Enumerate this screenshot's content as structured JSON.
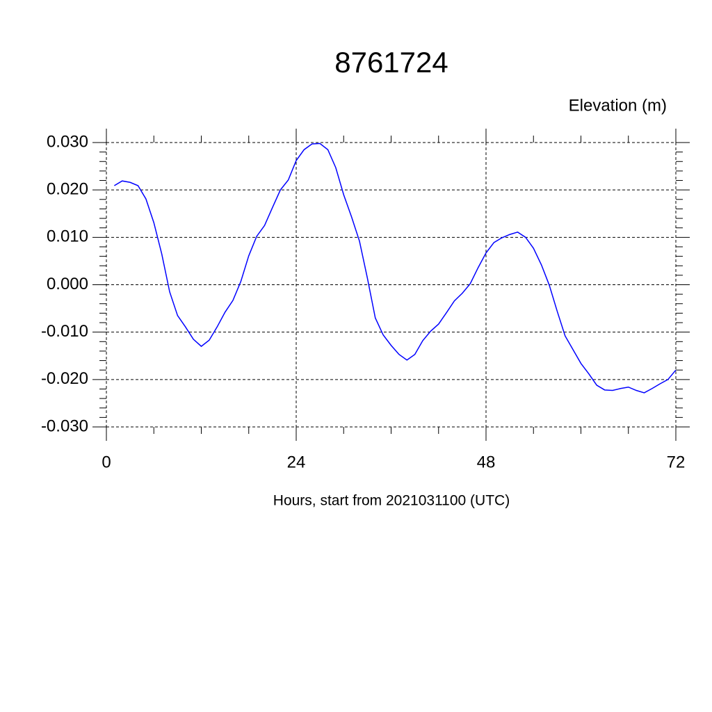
{
  "chart_data": {
    "type": "line",
    "title": "8761724",
    "subtitle": "Elevation (m)",
    "x_label": "Hours, start from 2021031100 (UTC)",
    "x": [
      1,
      2,
      3,
      4,
      5,
      6,
      7,
      8,
      9,
      10,
      11,
      12,
      13,
      14,
      15,
      16,
      17,
      18,
      19,
      20,
      21,
      22,
      23,
      24,
      25,
      26,
      27,
      28,
      29,
      30,
      31,
      32,
      33,
      34,
      35,
      36,
      37,
      38,
      39,
      40,
      41,
      42,
      43,
      44,
      45,
      46,
      47,
      48,
      49,
      50,
      51,
      52,
      53,
      54,
      55,
      56,
      57,
      58,
      59,
      60,
      61,
      62,
      63,
      64,
      65,
      66,
      67,
      68,
      69,
      70,
      71,
      72
    ],
    "series": [
      {
        "color": "#0000ff",
        "values": [
          0.0209,
          0.0219,
          0.0216,
          0.0209,
          0.0181,
          0.0131,
          0.0065,
          -0.0015,
          -0.0065,
          -0.0089,
          -0.0115,
          -0.013,
          -0.0117,
          -0.0089,
          -0.0058,
          -0.0033,
          0.0007,
          0.0061,
          0.0102,
          0.0125,
          0.0163,
          0.02,
          0.0221,
          0.0262,
          0.0285,
          0.0297,
          0.0298,
          0.0285,
          0.0247,
          0.019,
          0.0143,
          0.0092,
          0.0014,
          -0.007,
          -0.0106,
          -0.0128,
          -0.0147,
          -0.0159,
          -0.0147,
          -0.0118,
          -0.0098,
          -0.0083,
          -0.0059,
          -0.0034,
          -0.0018,
          0.0002,
          0.0036,
          0.0067,
          0.0089,
          0.0099,
          0.0106,
          0.0111,
          0.01,
          0.0077,
          0.0042,
          -0.0001,
          -0.0056,
          -0.0108,
          -0.0137,
          -0.0166,
          -0.0188,
          -0.0212,
          -0.0222,
          -0.0223,
          -0.0219,
          -0.0216,
          -0.0223,
          -0.0228,
          -0.0219,
          -0.0209,
          -0.02,
          -0.018
        ]
      }
    ],
    "xlim": [
      0,
      72
    ],
    "xticks": [
      0,
      24,
      48,
      72
    ],
    "ylim": [
      -0.03,
      0.03
    ],
    "yticks": [
      {
        "value": -0.03,
        "label": "-0.030"
      },
      {
        "value": -0.02,
        "label": "-0.020"
      },
      {
        "value": -0.01,
        "label": "-0.010"
      },
      {
        "value": 0,
        "label": "0.000"
      },
      {
        "value": 0.01,
        "label": "0.010"
      },
      {
        "value": 0.02,
        "label": "0.020"
      },
      {
        "value": 0.03,
        "label": "0.030"
      }
    ],
    "grid": true
  }
}
